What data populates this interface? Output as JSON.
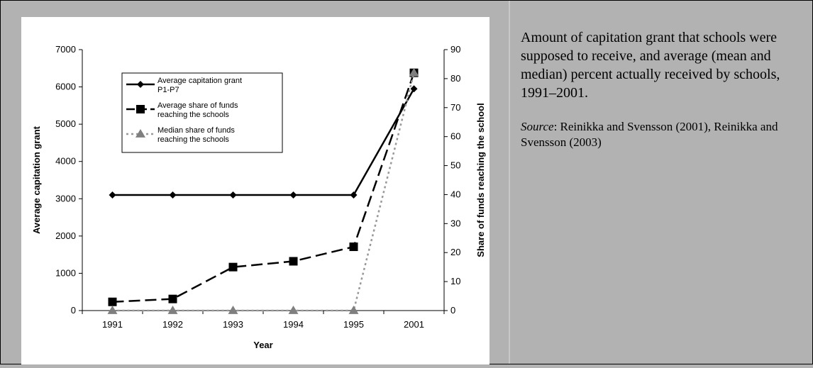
{
  "caption": {
    "text": "Amount of capitation grant that schools were supposed to receive, and average (mean and median) percent actually received by schools, 1991–2001.",
    "source_label": "Source",
    "source_text": ":  Reinikka and Svensson (2001), Reinikka and Svensson (2003)"
  },
  "chart_data": {
    "type": "line",
    "title": "",
    "xlabel": "Year",
    "ylabel": "Average capitation grant",
    "y2label": "Share of funds reaching the school",
    "categories": [
      "1991",
      "1992",
      "1993",
      "1994",
      "1995",
      "2001"
    ],
    "ylim": [
      0,
      7000
    ],
    "yticks": [
      0,
      1000,
      2000,
      3000,
      4000,
      5000,
      6000,
      7000
    ],
    "y2lim": [
      0,
      90
    ],
    "y2ticks": [
      0,
      10,
      20,
      30,
      40,
      50,
      60,
      70,
      80,
      90
    ],
    "legend_position": "upper-left",
    "series": [
      {
        "name": "Average capitation grant P1-P7",
        "axis": "left",
        "values": [
          3100,
          3100,
          3100,
          3100,
          3100,
          5950
        ],
        "color": "#000000",
        "style": "solid",
        "marker": "diamond"
      },
      {
        "name": "Average share of funds reaching the schools",
        "axis": "right",
        "values": [
          3,
          4,
          15,
          17,
          22,
          82
        ],
        "color": "#000000",
        "style": "dashed",
        "marker": "square"
      },
      {
        "name": "Median share of funds reaching the schools",
        "axis": "right",
        "values": [
          0,
          0,
          0,
          0,
          0,
          82
        ],
        "color": "#999999",
        "style": "dotted",
        "marker": "triangle"
      }
    ]
  }
}
